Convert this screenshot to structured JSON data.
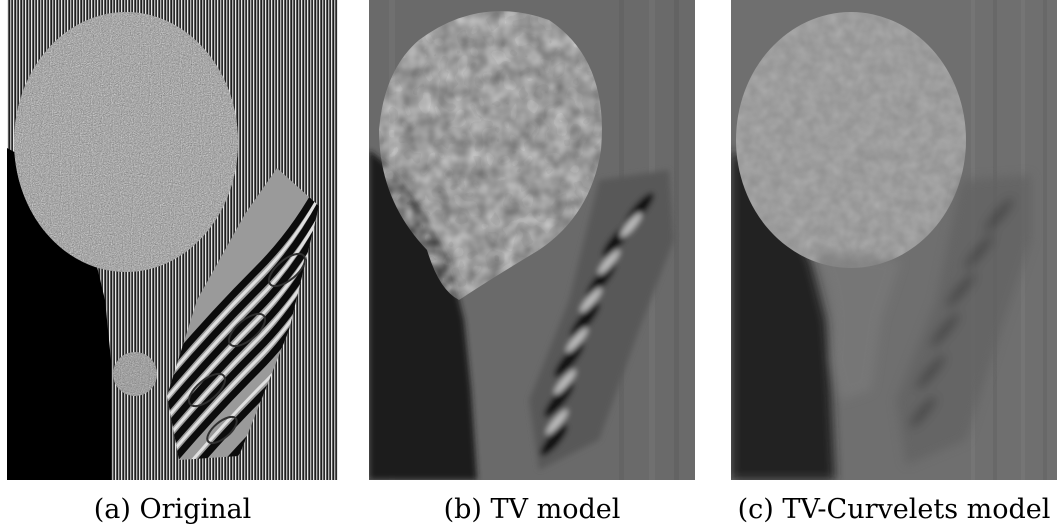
{
  "figure": {
    "panels": [
      {
        "label": "(a)",
        "caption": "Original"
      },
      {
        "label": "(b)",
        "caption": "TV model"
      },
      {
        "label": "(c)",
        "caption": "TV-Curvelets model"
      }
    ]
  }
}
